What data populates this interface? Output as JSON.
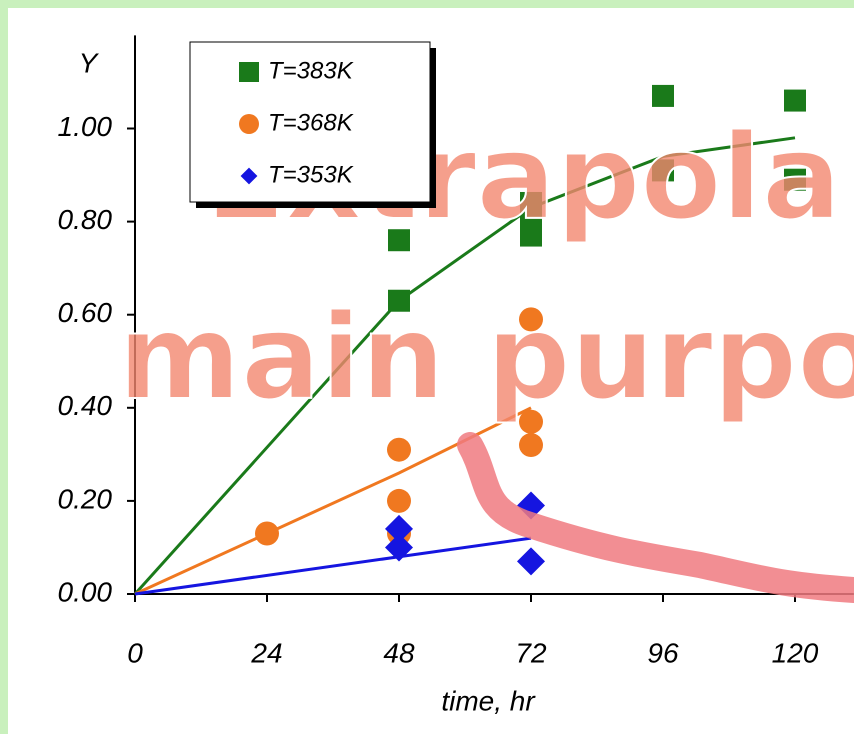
{
  "chart_data": {
    "type": "scatter",
    "y_label": "Y",
    "x_label": "time, hr",
    "xlim": [
      0,
      130.7
    ],
    "ylim": [
      0,
      1.2
    ],
    "xticks": [
      0,
      24,
      48,
      72,
      96,
      120
    ],
    "yticks": [
      {
        "value": 0,
        "label": "0.00"
      },
      {
        "value": 0.2,
        "label": "0.20"
      },
      {
        "value": 0.4,
        "label": "0.40"
      },
      {
        "value": 0.6,
        "label": "0.60"
      },
      {
        "value": 0.8,
        "label": "0.80"
      },
      {
        "value": 1.0,
        "label": "1.00"
      }
    ],
    "series": [
      {
        "name": "T=383K",
        "color": "#1a7a1a",
        "marker": "square",
        "x": [
          48,
          48,
          72,
          72,
          72,
          96,
          96,
          120,
          120
        ],
        "values": [
          0.76,
          0.63,
          0.84,
          0.81,
          0.77,
          1.07,
          0.91,
          1.06,
          0.89
        ]
      },
      {
        "name": "T=368K",
        "color": "#f07820",
        "marker": "circle",
        "x": [
          24,
          48,
          48,
          48,
          72,
          72,
          72
        ],
        "values": [
          0.13,
          0.31,
          0.2,
          0.13,
          0.59,
          0.37,
          0.32
        ]
      },
      {
        "name": "T=353K",
        "color": "#1515e0",
        "marker": "diamond",
        "x": [
          48,
          48,
          72,
          72
        ],
        "values": [
          0.14,
          0.1,
          0.19,
          0.07
        ]
      }
    ],
    "fits": [
      {
        "color": "#1a7a1a",
        "x": [
          0,
          48,
          72,
          96,
          120
        ],
        "values": [
          0,
          0.63,
          0.83,
          0.94,
          0.98
        ]
      },
      {
        "color": "#f07820",
        "x": [
          0,
          24,
          48,
          72
        ],
        "values": [
          0,
          0.13,
          0.26,
          0.4
        ]
      },
      {
        "color": "#1515e0",
        "x": [
          0,
          48,
          72
        ],
        "values": [
          0,
          0.08,
          0.12
        ]
      }
    ],
    "annotations": [
      "Extrapola",
      "main purpo"
    ]
  }
}
